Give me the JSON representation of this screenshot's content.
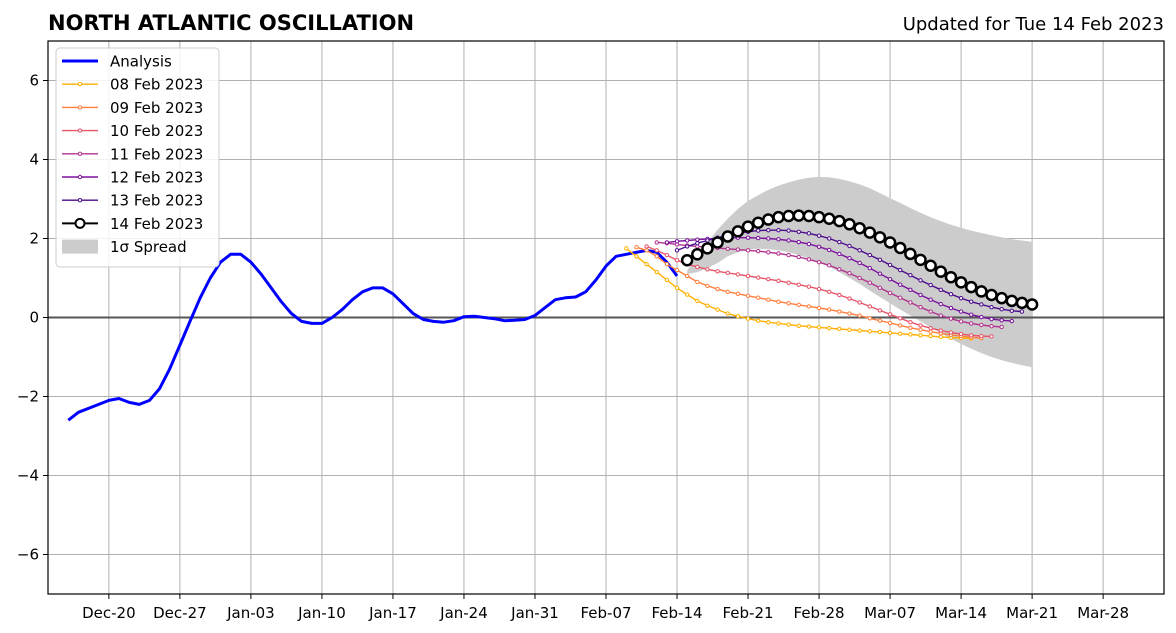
{
  "chart_data": {
    "type": "line",
    "title": "NORTH ATLANTIC OSCILLATION",
    "subtitle": "Updated for Tue 14 Feb 2023",
    "xlabel": "",
    "ylabel": "",
    "x_range": [
      "2022-12-14",
      "2023-04-03"
    ],
    "ylim": [
      -7,
      7
    ],
    "grid": true,
    "legend_position": "top-left",
    "x_ticks": [
      {
        "date": "2022-12-20",
        "label": "Dec-20"
      },
      {
        "date": "2022-12-27",
        "label": "Dec-27"
      },
      {
        "date": "2023-01-03",
        "label": "Jan-03"
      },
      {
        "date": "2023-01-10",
        "label": "Jan-10"
      },
      {
        "date": "2023-01-17",
        "label": "Jan-17"
      },
      {
        "date": "2023-01-24",
        "label": "Jan-24"
      },
      {
        "date": "2023-01-31",
        "label": "Jan-31"
      },
      {
        "date": "2023-02-07",
        "label": "Feb-07"
      },
      {
        "date": "2023-02-14",
        "label": "Feb-14"
      },
      {
        "date": "2023-02-21",
        "label": "Feb-21"
      },
      {
        "date": "2023-02-28",
        "label": "Feb-28"
      },
      {
        "date": "2023-03-07",
        "label": "Mar-07"
      },
      {
        "date": "2023-03-14",
        "label": "Mar-14"
      },
      {
        "date": "2023-03-21",
        "label": "Mar-21"
      },
      {
        "date": "2023-03-28",
        "label": "Mar-28"
      }
    ],
    "y_ticks": [
      {
        "value": -6,
        "label": "−6"
      },
      {
        "value": -4,
        "label": "−4"
      },
      {
        "value": -2,
        "label": "−2"
      },
      {
        "value": 0,
        "label": "0"
      },
      {
        "value": 2,
        "label": "2"
      },
      {
        "value": 4,
        "label": "4"
      },
      {
        "value": 6,
        "label": "6"
      }
    ],
    "analysis": {
      "name": "Analysis",
      "color": "#0000ff",
      "points": [
        [
          "2022-12-16",
          -2.6
        ],
        [
          "2022-12-17",
          -2.4
        ],
        [
          "2022-12-19",
          -2.2
        ],
        [
          "2022-12-20",
          -2.1
        ],
        [
          "2022-12-21",
          -2.05
        ],
        [
          "2022-12-22",
          -2.15
        ],
        [
          "2022-12-23",
          -2.2
        ],
        [
          "2022-12-24",
          -2.1
        ],
        [
          "2022-12-25",
          -1.8
        ],
        [
          "2022-12-26",
          -1.3
        ],
        [
          "2022-12-27",
          -0.7
        ],
        [
          "2022-12-28",
          -0.1
        ],
        [
          "2022-12-29",
          0.5
        ],
        [
          "2022-12-30",
          1.0
        ],
        [
          "2022-12-31",
          1.4
        ],
        [
          "2023-01-01",
          1.6
        ],
        [
          "2023-01-02",
          1.6
        ],
        [
          "2023-01-03",
          1.4
        ],
        [
          "2023-01-04",
          1.1
        ],
        [
          "2023-01-05",
          0.75
        ],
        [
          "2023-01-06",
          0.4
        ],
        [
          "2023-01-07",
          0.1
        ],
        [
          "2023-01-08",
          -0.1
        ],
        [
          "2023-01-09",
          -0.15
        ],
        [
          "2023-01-10",
          -0.15
        ],
        [
          "2023-01-11",
          0.0
        ],
        [
          "2023-01-12",
          0.2
        ],
        [
          "2023-01-13",
          0.45
        ],
        [
          "2023-01-14",
          0.65
        ],
        [
          "2023-01-15",
          0.75
        ],
        [
          "2023-01-16",
          0.75
        ],
        [
          "2023-01-17",
          0.6
        ],
        [
          "2023-01-18",
          0.35
        ],
        [
          "2023-01-19",
          0.1
        ],
        [
          "2023-01-20",
          -0.05
        ],
        [
          "2023-01-21",
          -0.1
        ],
        [
          "2023-01-22",
          -0.12
        ],
        [
          "2023-01-23",
          -0.08
        ],
        [
          "2023-01-24",
          0.02
        ],
        [
          "2023-01-25",
          0.03
        ],
        [
          "2023-01-26",
          0.0
        ],
        [
          "2023-01-27",
          -0.03
        ],
        [
          "2023-01-28",
          -0.08
        ],
        [
          "2023-01-29",
          -0.07
        ],
        [
          "2023-01-30",
          -0.05
        ],
        [
          "2023-01-31",
          0.05
        ],
        [
          "2023-02-01",
          0.25
        ],
        [
          "2023-02-02",
          0.45
        ],
        [
          "2023-02-03",
          0.5
        ],
        [
          "2023-02-04",
          0.52
        ],
        [
          "2023-02-05",
          0.65
        ],
        [
          "2023-02-06",
          0.95
        ],
        [
          "2023-02-07",
          1.3
        ],
        [
          "2023-02-08",
          1.55
        ],
        [
          "2023-02-09",
          1.6
        ],
        [
          "2023-02-10",
          1.65
        ],
        [
          "2023-02-11",
          1.7
        ],
        [
          "2023-02-12",
          1.65
        ],
        [
          "2023-02-13",
          1.4
        ],
        [
          "2023-02-14",
          1.05
        ]
      ]
    },
    "forecasts": [
      {
        "name": "08 Feb 2023",
        "color": "#ffb000",
        "start": "2023-02-09",
        "values": [
          1.75,
          1.55,
          1.35,
          1.15,
          0.95,
          0.75,
          0.58,
          0.42,
          0.3,
          0.2,
          0.1,
          0.03,
          -0.03,
          -0.08,
          -0.12,
          -0.15,
          -0.18,
          -0.21,
          -0.23,
          -0.25,
          -0.27,
          -0.29,
          -0.31,
          -0.33,
          -0.35,
          -0.37,
          -0.39,
          -0.41,
          -0.43,
          -0.45,
          -0.47,
          -0.49,
          -0.51,
          -0.52,
          -0.53
        ]
      },
      {
        "name": "09 Feb 2023",
        "color": "#ff7f3f",
        "start": "2023-02-10",
        "values": [
          1.78,
          1.7,
          1.55,
          1.35,
          1.2,
          1.05,
          0.9,
          0.8,
          0.72,
          0.65,
          0.6,
          0.55,
          0.5,
          0.45,
          0.4,
          0.36,
          0.32,
          0.28,
          0.24,
          0.2,
          0.15,
          0.1,
          0.05,
          -0.02,
          -0.08,
          -0.14,
          -0.2,
          -0.26,
          -0.31,
          -0.36,
          -0.4,
          -0.44,
          -0.47,
          -0.5,
          -0.52
        ]
      },
      {
        "name": "10 Feb 2023",
        "color": "#e5556a",
        "start": "2023-02-11",
        "values": [
          1.8,
          1.7,
          1.58,
          1.45,
          1.35,
          1.28,
          1.22,
          1.17,
          1.13,
          1.09,
          1.05,
          1.01,
          0.97,
          0.93,
          0.88,
          0.83,
          0.78,
          0.72,
          0.65,
          0.57,
          0.48,
          0.38,
          0.28,
          0.18,
          0.08,
          -0.02,
          -0.12,
          -0.2,
          -0.27,
          -0.33,
          -0.38,
          -0.42,
          -0.45,
          -0.47,
          -0.48
        ]
      },
      {
        "name": "11 Feb 2023",
        "color": "#b2338f",
        "start": "2023-02-12",
        "values": [
          1.9,
          1.88,
          1.85,
          1.82,
          1.8,
          1.78,
          1.76,
          1.74,
          1.72,
          1.7,
          1.68,
          1.65,
          1.62,
          1.58,
          1.53,
          1.47,
          1.4,
          1.32,
          1.22,
          1.12,
          1.0,
          0.88,
          0.75,
          0.62,
          0.5,
          0.38,
          0.26,
          0.15,
          0.05,
          -0.03,
          -0.1,
          -0.15,
          -0.19,
          -0.22,
          -0.24
        ]
      },
      {
        "name": "12 Feb 2023",
        "color": "#7a119e",
        "start": "2023-02-13",
        "values": [
          1.9,
          1.93,
          1.95,
          1.97,
          1.99,
          2.0,
          2.01,
          2.02,
          2.02,
          2.01,
          2.0,
          1.98,
          1.95,
          1.91,
          1.86,
          1.79,
          1.71,
          1.61,
          1.5,
          1.38,
          1.25,
          1.11,
          0.97,
          0.83,
          0.7,
          0.57,
          0.45,
          0.34,
          0.24,
          0.15,
          0.07,
          0.01,
          -0.04,
          -0.07,
          -0.09
        ]
      },
      {
        "name": "13 Feb 2023",
        "color": "#4b0b8c",
        "start": "2023-02-14",
        "values": [
          1.7,
          1.8,
          1.88,
          1.95,
          2.02,
          2.08,
          2.13,
          2.17,
          2.2,
          2.21,
          2.21,
          2.2,
          2.17,
          2.13,
          2.07,
          2.0,
          1.91,
          1.81,
          1.7,
          1.58,
          1.46,
          1.33,
          1.2,
          1.07,
          0.94,
          0.82,
          0.7,
          0.59,
          0.49,
          0.4,
          0.33,
          0.26,
          0.21,
          0.17,
          0.15
        ]
      },
      {
        "name": "14 Feb 2023",
        "color": "#000000",
        "start": "2023-02-15",
        "values": [
          1.45,
          1.6,
          1.75,
          1.9,
          2.05,
          2.18,
          2.3,
          2.4,
          2.48,
          2.54,
          2.57,
          2.58,
          2.57,
          2.54,
          2.5,
          2.44,
          2.36,
          2.26,
          2.15,
          2.03,
          1.9,
          1.76,
          1.61,
          1.46,
          1.31,
          1.16,
          1.02,
          0.89,
          0.77,
          0.66,
          0.57,
          0.49,
          0.42,
          0.37,
          0.33
        ]
      }
    ],
    "spread": {
      "name": "1σ Spread",
      "color": "#cccccc",
      "start": "2023-02-15",
      "upper": [
        1.2,
        1.55,
        1.9,
        2.22,
        2.5,
        2.75,
        2.95,
        3.1,
        3.23,
        3.34,
        3.42,
        3.49,
        3.54,
        3.56,
        3.55,
        3.51,
        3.45,
        3.37,
        3.27,
        3.15,
        3.02,
        2.9,
        2.77,
        2.65,
        2.54,
        2.44,
        2.35,
        2.27,
        2.2,
        2.14,
        2.08,
        2.03,
        1.98,
        1.95,
        1.92
      ],
      "lower": [
        1.1,
        1.15,
        1.25,
        1.38,
        1.55,
        1.65,
        1.72,
        1.74,
        1.73,
        1.7,
        1.65,
        1.58,
        1.5,
        1.4,
        1.28,
        1.15,
        1.0,
        0.85,
        0.68,
        0.52,
        0.36,
        0.2,
        0.05,
        -0.1,
        -0.25,
        -0.4,
        -0.54,
        -0.67,
        -0.79,
        -0.9,
        -1.0,
        -1.08,
        -1.15,
        -1.21,
        -1.26
      ]
    }
  }
}
